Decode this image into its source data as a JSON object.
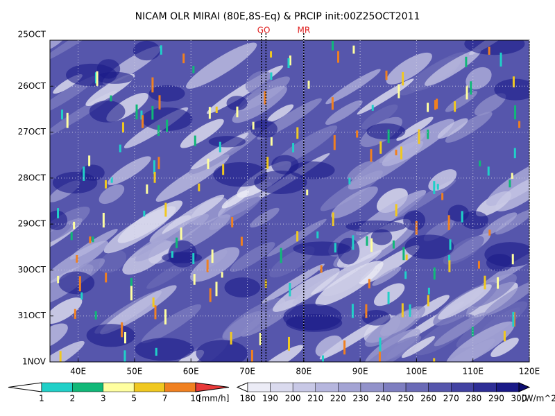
{
  "chart_data": {
    "type": "hovmoller",
    "title": "NICAM OLR MIRAI (80E,8S-Eq) & PRCIP init:00Z25OCT2011",
    "xlim": [
      35,
      120
    ],
    "xticks": [
      {
        "value": 40,
        "label": "40E"
      },
      {
        "value": 50,
        "label": "50E"
      },
      {
        "value": 60,
        "label": "60E"
      },
      {
        "value": 70,
        "label": "70E"
      },
      {
        "value": 80,
        "label": "80E"
      },
      {
        "value": 90,
        "label": "90E"
      },
      {
        "value": 100,
        "label": "100E"
      },
      {
        "value": 110,
        "label": "110E"
      },
      {
        "value": 120,
        "label": "120E"
      }
    ],
    "ylim": [
      "25OCT",
      "1NOV"
    ],
    "yticks": [
      "25OCT",
      "26OCT",
      "27OCT",
      "28OCT",
      "29OCT",
      "30OCT",
      "31OCT",
      "1NOV"
    ],
    "grid": true,
    "markers": [
      {
        "label": "GO",
        "x": [
          72.5,
          73.3
        ]
      },
      {
        "label": "MR",
        "x": [
          80
        ]
      }
    ],
    "colorbars": [
      {
        "units": "[mm/h]",
        "levels": [
          1,
          2,
          3,
          5,
          7,
          10
        ],
        "colors": [
          "#ffffff",
          "#20d0c8",
          "#10b878",
          "#ffffa0",
          "#f0c820",
          "#f08020",
          "#e83838"
        ]
      },
      {
        "units": "[W/m^2]",
        "levels": [
          180,
          190,
          200,
          210,
          220,
          230,
          240,
          250,
          260,
          270,
          280,
          290,
          300
        ],
        "colors": [
          "#ffffff",
          "#ececf6",
          "#dadaee",
          "#c8c8e6",
          "#b6b6de",
          "#a4a4d4",
          "#9292ca",
          "#7e7ec0",
          "#6a6ab6",
          "#5656ac",
          "#4242a2",
          "#2e2e96",
          "#1a1a88",
          "#0c0c70"
        ]
      }
    ]
  }
}
